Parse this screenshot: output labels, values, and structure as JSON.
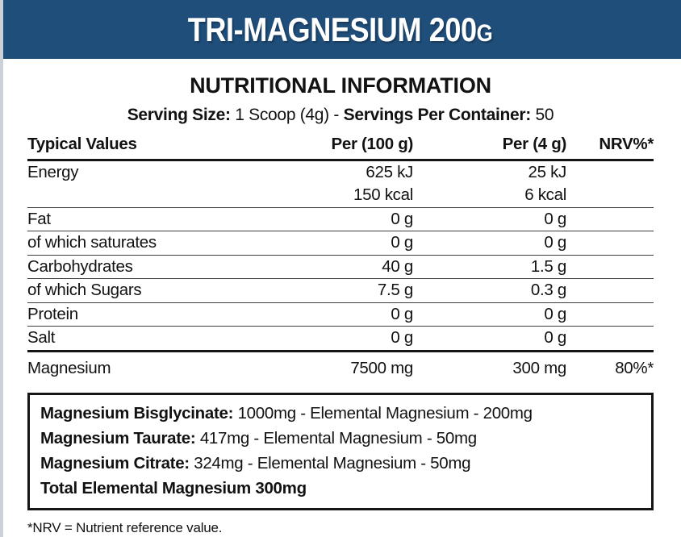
{
  "colors": {
    "header_bg": "#1F4E7B",
    "rule_thick": "#151515",
    "rule_thin": "#3D3D3D",
    "left_strip": "#CCD1D8"
  },
  "header": {
    "title_main": "TRI-MAGNESIUM 200",
    "title_suffix": "G"
  },
  "section": {
    "heading": "NUTRITIONAL INFORMATION",
    "serving": {
      "label1": "Serving Size:",
      "value1": " 1 Scoop (4g) - ",
      "label2": "Servings Per Container:",
      "value2": " 50"
    }
  },
  "table": {
    "headers": {
      "col1": "Typical Values",
      "col2": "Per (100 g)",
      "col3": "Per (4 g)",
      "col4": "NRV%*"
    },
    "rows": [
      {
        "label": "Energy",
        "per100": "625 kJ",
        "per4": "25 kJ",
        "nrv": ""
      },
      {
        "label": "",
        "per100": "150 kcal",
        "per4": "6 kcal",
        "nrv": ""
      },
      {
        "label": "Fat",
        "per100": "0 g",
        "per4": "0 g",
        "nrv": ""
      },
      {
        "label": "of which saturates",
        "per100": "0 g",
        "per4": "0 g",
        "nrv": ""
      },
      {
        "label": "Carbohydrates",
        "per100": "40 g",
        "per4": "1.5 g",
        "nrv": ""
      },
      {
        "label": "of which Sugars",
        "per100": "7.5 g",
        "per4": "0.3 g",
        "nrv": ""
      },
      {
        "label": "Protein",
        "per100": "0 g",
        "per4": "0 g",
        "nrv": ""
      },
      {
        "label": "Salt",
        "per100": "0 g",
        "per4": "0 g",
        "nrv": ""
      },
      {
        "label": "Magnesium",
        "per100": "7500 mg",
        "per4": "300 mg",
        "nrv": "80%*"
      }
    ]
  },
  "breakdown": {
    "lines": [
      {
        "bold": "Magnesium Bisglycinate:",
        "rest": " 1000mg - Elemental Magnesium - 200mg"
      },
      {
        "bold": "Magnesium Taurate:",
        "rest": " 417mg - Elemental Magnesium - 50mg"
      },
      {
        "bold": "Magnesium Citrate:",
        "rest": " 324mg - Elemental Magnesium - 50mg"
      },
      {
        "bold": "Total Elemental Magnesium 300mg",
        "rest": ""
      }
    ]
  },
  "footnote": "*NRV = Nutrient reference value."
}
